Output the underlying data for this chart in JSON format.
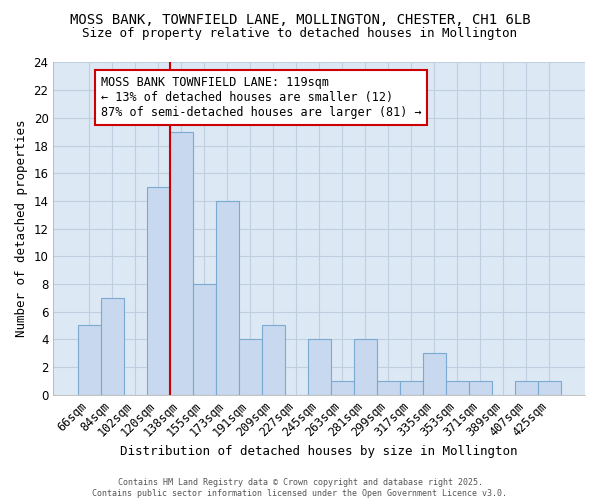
{
  "title1": "MOSS BANK, TOWNFIELD LANE, MOLLINGTON, CHESTER, CH1 6LB",
  "title2": "Size of property relative to detached houses in Mollington",
  "xlabel": "Distribution of detached houses by size in Mollington",
  "ylabel": "Number of detached properties",
  "categories": [
    "66sqm",
    "84sqm",
    "102sqm",
    "120sqm",
    "138sqm",
    "155sqm",
    "173sqm",
    "191sqm",
    "209sqm",
    "227sqm",
    "245sqm",
    "263sqm",
    "281sqm",
    "299sqm",
    "317sqm",
    "335sqm",
    "353sqm",
    "371sqm",
    "389sqm",
    "407sqm",
    "425sqm"
  ],
  "values": [
    5,
    7,
    0,
    15,
    19,
    8,
    14,
    4,
    5,
    0,
    4,
    1,
    4,
    1,
    1,
    3,
    1,
    1,
    0,
    1,
    1
  ],
  "bar_color": "#c8d8ee",
  "bar_edge_color": "#7aaad0",
  "bar_width": 1.0,
  "ylim": [
    0,
    24
  ],
  "yticks": [
    0,
    2,
    4,
    6,
    8,
    10,
    12,
    14,
    16,
    18,
    20,
    22,
    24
  ],
  "vline_x": 3.5,
  "vline_color": "#cc0000",
  "annotation_text": "MOSS BANK TOWNFIELD LANE: 119sqm\n← 13% of detached houses are smaller (12)\n87% of semi-detached houses are larger (81) →",
  "annotation_fontsize": 8.5,
  "bg_color": "#ffffff",
  "plot_bg_color": "#dde8f5",
  "grid_color": "#c0cfe0",
  "footer": "Contains HM Land Registry data © Crown copyright and database right 2025.\nContains public sector information licensed under the Open Government Licence v3.0.",
  "title1_fontsize": 10,
  "title2_fontsize": 9,
  "xlabel_fontsize": 9,
  "ylabel_fontsize": 9,
  "tick_fontsize": 8.5
}
